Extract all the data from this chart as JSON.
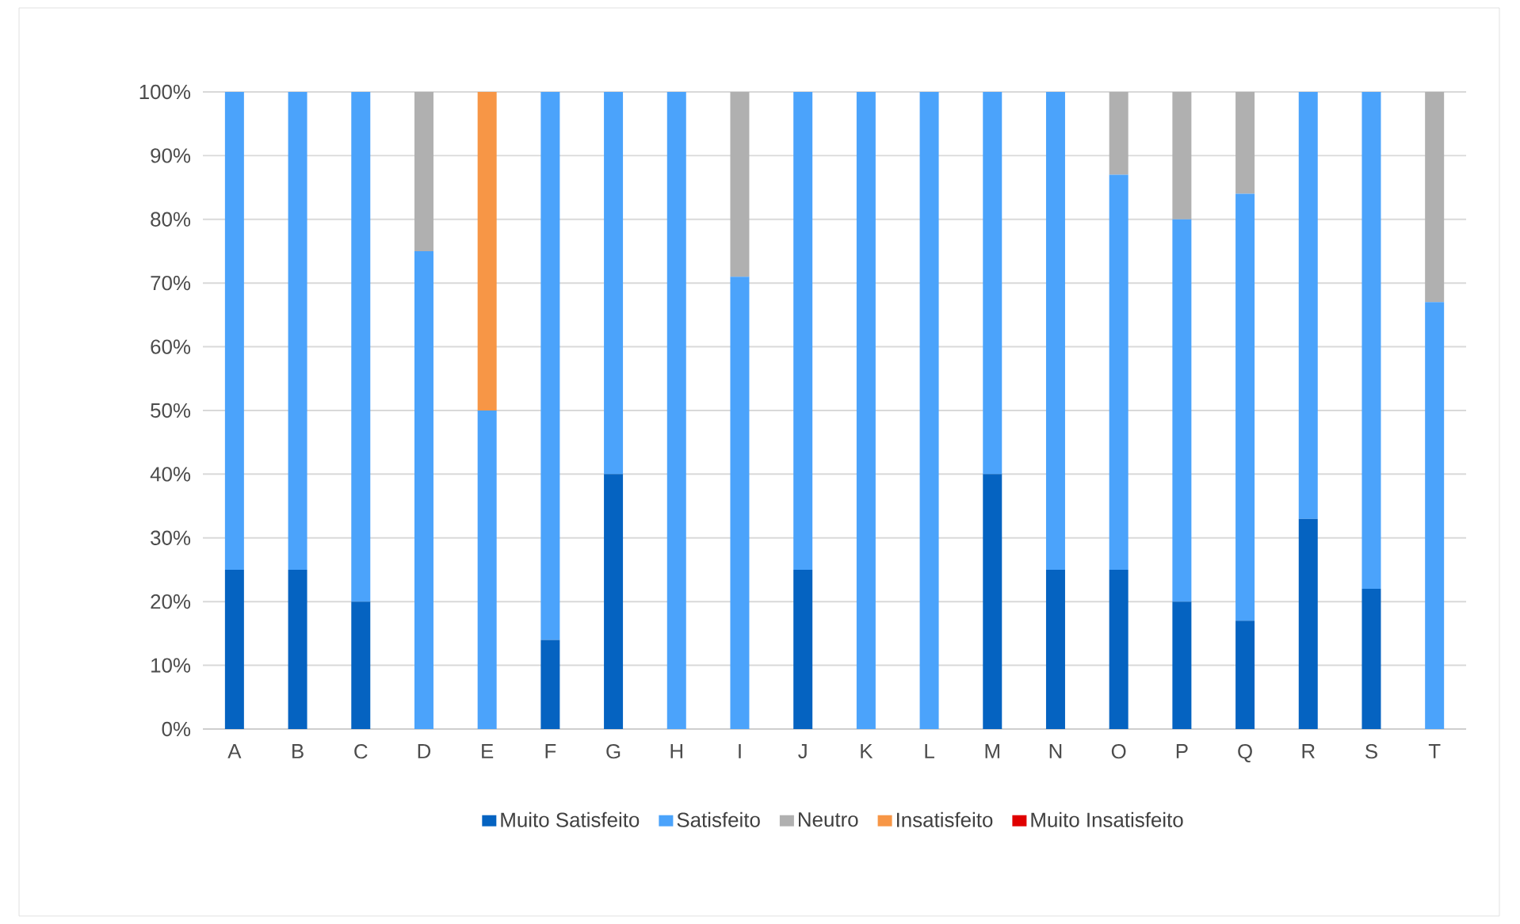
{
  "chart_data": {
    "type": "bar",
    "stacked": true,
    "categories": [
      "A",
      "B",
      "C",
      "D",
      "E",
      "F",
      "G",
      "H",
      "I",
      "J",
      "K",
      "L",
      "M",
      "N",
      "O",
      "P",
      "Q",
      "R",
      "S",
      "T"
    ],
    "series": [
      {
        "name": "Muito Satisfeito",
        "color": "#0563c1",
        "values": [
          25,
          25,
          20,
          0,
          0,
          14,
          40,
          0,
          0,
          25,
          0,
          0,
          40,
          25,
          25,
          20,
          17,
          33,
          22,
          0
        ]
      },
      {
        "name": "Satisfeito",
        "color": "#4ba3fb",
        "values": [
          75,
          75,
          80,
          75,
          50,
          86,
          60,
          100,
          71,
          75,
          100,
          100,
          60,
          75,
          62,
          60,
          67,
          67,
          78,
          67
        ]
      },
      {
        "name": "Neutro",
        "color": "#b0b0b0",
        "values": [
          0,
          0,
          0,
          25,
          0,
          0,
          0,
          0,
          29,
          0,
          0,
          0,
          0,
          0,
          13,
          20,
          16,
          0,
          0,
          33
        ]
      },
      {
        "name": "Insatisfeito",
        "color": "#f79646",
        "values": [
          0,
          0,
          0,
          0,
          50,
          0,
          0,
          0,
          0,
          0,
          0,
          0,
          0,
          0,
          0,
          0,
          0,
          0,
          0,
          0
        ]
      },
      {
        "name": "Muito Insatisfeito",
        "color": "#e00000",
        "values": [
          0,
          0,
          0,
          0,
          0,
          0,
          0,
          0,
          0,
          0,
          0,
          0,
          0,
          0,
          0,
          0,
          0,
          0,
          0,
          0
        ]
      }
    ],
    "ylim": [
      0,
      100
    ],
    "yticks": [
      {
        "value": 0,
        "label": "0%"
      },
      {
        "value": 10,
        "label": "10%"
      },
      {
        "value": 20,
        "label": "20%"
      },
      {
        "value": 30,
        "label": "30%"
      },
      {
        "value": 40,
        "label": "40%"
      },
      {
        "value": 50,
        "label": "50%"
      },
      {
        "value": 60,
        "label": "60%"
      },
      {
        "value": 70,
        "label": "70%"
      },
      {
        "value": 80,
        "label": "80%"
      },
      {
        "value": 90,
        "label": "90%"
      },
      {
        "value": 100,
        "label": "100%"
      }
    ],
    "grid": "y",
    "legend": "bottom"
  }
}
